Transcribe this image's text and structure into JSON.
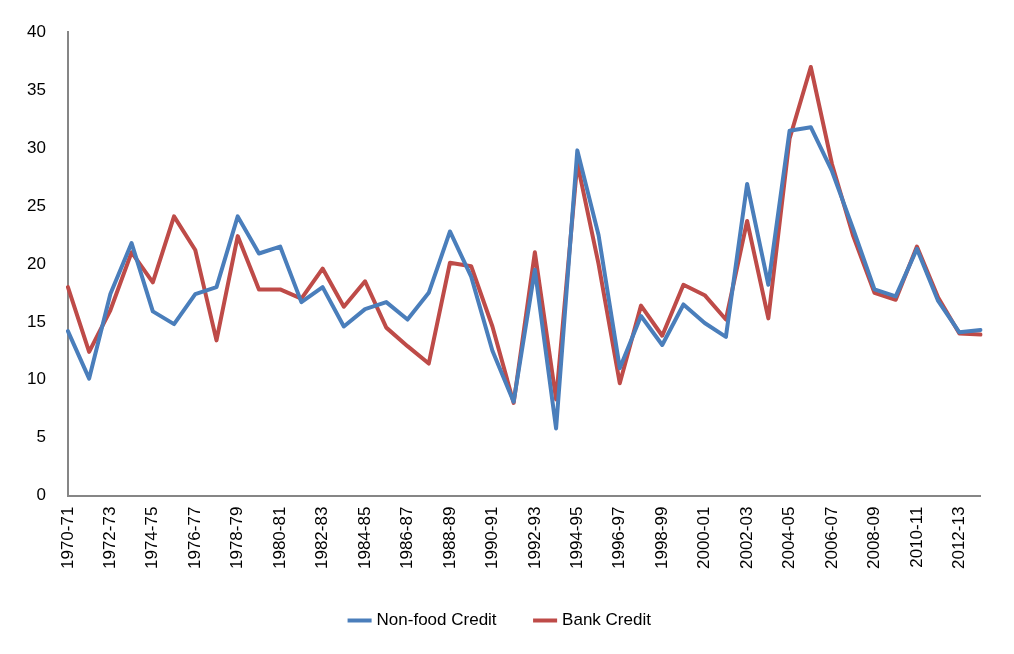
{
  "chart_data": {
    "type": "line",
    "categories": [
      "1970-71",
      null,
      "1972-73",
      null,
      "1974-75",
      null,
      "1976-77",
      null,
      "1978-79",
      null,
      "1980-81",
      null,
      "1982-83",
      null,
      "1984-85",
      null,
      "1986-87",
      null,
      "1988-89",
      null,
      "1990-91",
      null,
      "1992-93",
      null,
      "1994-95",
      null,
      "1996-97",
      null,
      "1998-99",
      null,
      "2000-01",
      null,
      "2002-03",
      null,
      "2004-05",
      null,
      "2006-07",
      null,
      "2008-09",
      null,
      "2010-11",
      null,
      "2012-13",
      null
    ],
    "series": [
      {
        "name": "Non-food Credit",
        "color": "#4a7ebb",
        "values": [
          14.2,
          10.1,
          17.4,
          21.8,
          15.9,
          14.8,
          17.4,
          18.0,
          24.1,
          20.9,
          21.5,
          16.7,
          18.0,
          14.6,
          16.1,
          16.7,
          15.2,
          17.5,
          22.8,
          18.9,
          12.5,
          8.1,
          19.5,
          5.8,
          29.8,
          22.5,
          11.0,
          15.5,
          13.0,
          16.5,
          14.9,
          13.7,
          26.9,
          18.2,
          31.5,
          31.8,
          28.0,
          23.0,
          17.8,
          17.2,
          21.3,
          16.8,
          14.1,
          14.3
        ]
      },
      {
        "name": "Bank Credit",
        "color": "#be4b48",
        "values": [
          18.0,
          12.4,
          16.0,
          21.0,
          18.4,
          24.1,
          21.2,
          13.4,
          22.4,
          17.8,
          17.8,
          17.0,
          19.6,
          16.3,
          18.5,
          14.5,
          12.9,
          11.4,
          20.1,
          19.8,
          14.6,
          8.0,
          21.0,
          8.3,
          28.7,
          20.0,
          9.7,
          16.4,
          13.8,
          18.2,
          17.3,
          15.2,
          23.7,
          15.3,
          30.8,
          37.0,
          28.6,
          22.4,
          17.5,
          16.9,
          21.5,
          17.1,
          14.0,
          13.9
        ]
      }
    ],
    "ylim": [
      0,
      40
    ],
    "yticks": [
      0,
      5,
      10,
      15,
      20,
      25,
      30,
      35,
      40
    ],
    "grid": false,
    "legend": "bottom",
    "marker": "none",
    "line_style": "solid"
  }
}
